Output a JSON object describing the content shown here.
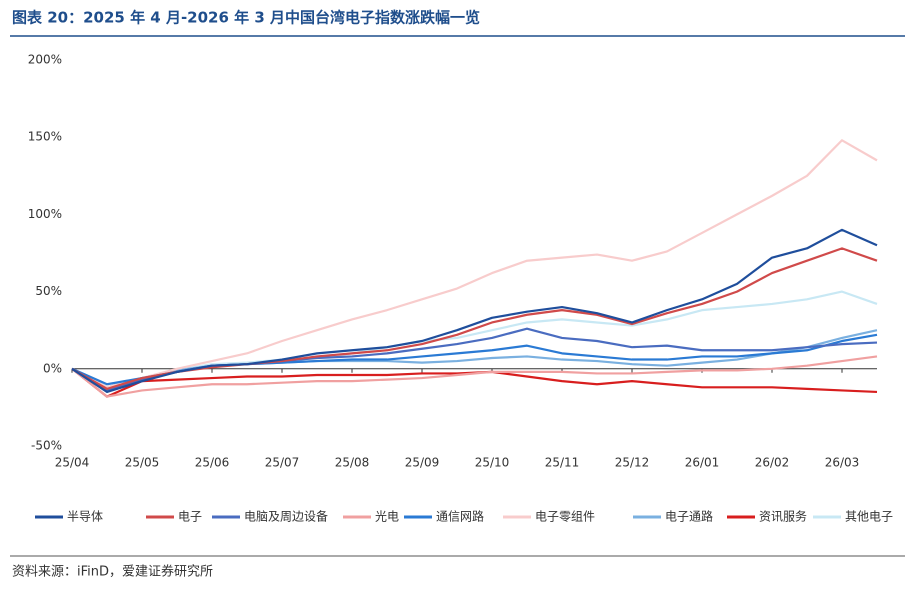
{
  "chart_data": {
    "type": "line",
    "title": "图表 20：2025 年 4 月-2026 年 3 月中国台湾电子指数涨跌幅一览",
    "source": "资料来源：iFinD，爱建证券研究所",
    "categories": [
      "25/04",
      null,
      "25/05",
      null,
      "25/06",
      null,
      "25/07",
      null,
      "25/08",
      null,
      "25/09",
      null,
      "25/10",
      null,
      "25/11",
      null,
      "25/12",
      null,
      "26/01",
      null,
      "26/02",
      null,
      "26/03",
      null
    ],
    "ylim": [
      -50,
      200
    ],
    "yticks": [
      {
        "value": -50,
        "label": "-50%"
      },
      {
        "value": 0,
        "label": "0%"
      },
      {
        "value": 50,
        "label": "50%"
      },
      {
        "value": 100,
        "label": "100%"
      },
      {
        "value": 150,
        "label": "150%"
      },
      {
        "value": 200,
        "label": "200%"
      }
    ],
    "series": [
      {
        "name": "半导体",
        "color": "#1f4e9c",
        "values": [
          0,
          -15,
          -8,
          -2,
          2,
          3,
          6,
          10,
          12,
          14,
          18,
          25,
          33,
          37,
          40,
          36,
          30,
          38,
          45,
          55,
          72,
          78,
          90,
          80
        ]
      },
      {
        "name": "电子",
        "color": "#d04a4a",
        "values": [
          0,
          -13,
          -6,
          -2,
          1,
          3,
          5,
          8,
          10,
          12,
          16,
          22,
          30,
          35,
          38,
          35,
          29,
          36,
          42,
          50,
          62,
          70,
          78,
          70
        ]
      },
      {
        "name": "电脑及周边设备",
        "color": "#4a6cc0",
        "values": [
          0,
          -14,
          -7,
          -2,
          2,
          3,
          5,
          7,
          8,
          10,
          13,
          16,
          20,
          26,
          20,
          18,
          14,
          15,
          12,
          12,
          12,
          14,
          16,
          17
        ]
      },
      {
        "name": "光电",
        "color": "#f0a0a0",
        "values": [
          0,
          -18,
          -14,
          -12,
          -10,
          -10,
          -9,
          -8,
          -8,
          -7,
          -6,
          -4,
          -2,
          -2,
          -2,
          -3,
          -3,
          -2,
          -1,
          -1,
          0,
          2,
          5,
          8
        ]
      },
      {
        "name": "通信网路",
        "color": "#2a7ad4",
        "values": [
          0,
          -10,
          -6,
          -2,
          2,
          3,
          4,
          5,
          6,
          6,
          8,
          10,
          12,
          15,
          10,
          8,
          6,
          6,
          8,
          8,
          10,
          12,
          18,
          22
        ]
      },
      {
        "name": "电子零组件",
        "color": "#f8cccc",
        "values": [
          0,
          -12,
          -6,
          0,
          5,
          10,
          18,
          25,
          32,
          38,
          45,
          52,
          62,
          70,
          72,
          74,
          70,
          76,
          88,
          100,
          112,
          125,
          148,
          135
        ]
      },
      {
        "name": "电子通路",
        "color": "#7ab0e0",
        "values": [
          0,
          -12,
          -6,
          -1,
          2,
          3,
          4,
          5,
          5,
          5,
          4,
          5,
          7,
          8,
          6,
          5,
          3,
          2,
          4,
          6,
          10,
          14,
          20,
          25
        ]
      },
      {
        "name": "资讯服务",
        "color": "#d81e1e",
        "values": [
          0,
          -18,
          -8,
          -7,
          -6,
          -5,
          -5,
          -4,
          -4,
          -4,
          -3,
          -3,
          -2,
          -5,
          -8,
          -10,
          -8,
          -10,
          -12,
          -12,
          -12,
          -13,
          -14,
          -15
        ]
      },
      {
        "name": "其他电子",
        "color": "#c8e8f4",
        "values": [
          0,
          -14,
          -6,
          -1,
          3,
          4,
          6,
          7,
          10,
          14,
          18,
          20,
          25,
          30,
          32,
          30,
          28,
          32,
          38,
          40,
          42,
          45,
          50,
          42
        ]
      }
    ]
  }
}
